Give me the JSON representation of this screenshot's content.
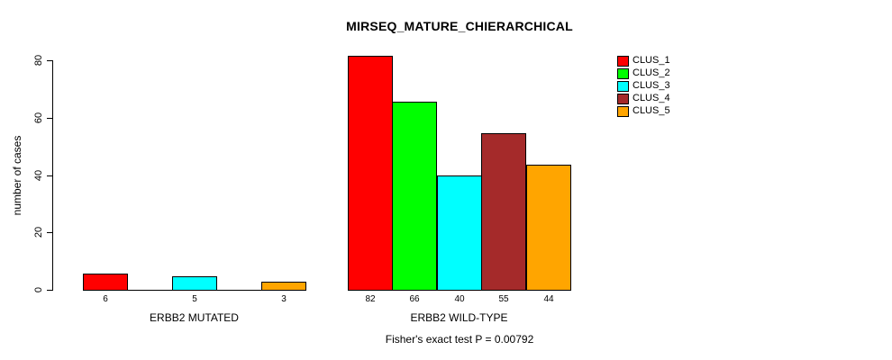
{
  "title": "MIRSEQ_MATURE_CHIERARCHICAL",
  "footer": "Fisher's exact test P = 0.00792",
  "y_axis": {
    "label": "number of cases",
    "ticks": [
      0,
      20,
      40,
      60,
      80
    ],
    "max": 80
  },
  "legend": {
    "items": [
      {
        "label": "CLUS_1",
        "color": "#FF0000"
      },
      {
        "label": "CLUS_2",
        "color": "#00FF00"
      },
      {
        "label": "CLUS_3",
        "color": "#00FFFF"
      },
      {
        "label": "CLUS_4",
        "color": "#A52A2A"
      },
      {
        "label": "CLUS_5",
        "color": "#FFA500"
      }
    ]
  },
  "groups": [
    {
      "label": "ERBB2 MUTATED",
      "bars": [
        {
          "cluster": "CLUS_1",
          "value": 6,
          "label": "6",
          "color": "#FF0000"
        },
        {
          "cluster": "CLUS_2",
          "value": 0,
          "label": "",
          "color": "#00FF00"
        },
        {
          "cluster": "CLUS_3",
          "value": 5,
          "label": "5",
          "color": "#00FFFF"
        },
        {
          "cluster": "CLUS_4",
          "value": 0,
          "label": "",
          "color": "#A52A2A"
        },
        {
          "cluster": "CLUS_5",
          "value": 3,
          "label": "3",
          "color": "#FFA500"
        }
      ]
    },
    {
      "label": "ERBB2 WILD-TYPE",
      "bars": [
        {
          "cluster": "CLUS_1",
          "value": 82,
          "label": "82",
          "color": "#FF0000"
        },
        {
          "cluster": "CLUS_2",
          "value": 66,
          "label": "66",
          "color": "#00FF00"
        },
        {
          "cluster": "CLUS_3",
          "value": 40,
          "label": "40",
          "color": "#00FFFF"
        },
        {
          "cluster": "CLUS_4",
          "value": 55,
          "label": "55",
          "color": "#A52A2A"
        },
        {
          "cluster": "CLUS_5",
          "value": 44,
          "label": "44",
          "color": "#FFA500"
        }
      ]
    }
  ],
  "chart_data": {
    "type": "bar",
    "title": "MIRSEQ_MATURE_CHIERARCHICAL",
    "categories": [
      "ERBB2 MUTATED",
      "ERBB2 WILD-TYPE"
    ],
    "series": [
      {
        "name": "CLUS_1",
        "color": "#FF0000",
        "values": [
          6,
          82
        ]
      },
      {
        "name": "CLUS_2",
        "color": "#00FF00",
        "values": [
          0,
          66
        ]
      },
      {
        "name": "CLUS_3",
        "color": "#00FFFF",
        "values": [
          5,
          40
        ]
      },
      {
        "name": "CLUS_4",
        "color": "#A52A2A",
        "values": [
          0,
          55
        ]
      },
      {
        "name": "CLUS_5",
        "color": "#FFA500",
        "values": [
          3,
          44
        ]
      }
    ],
    "bar_value_labels": [
      [
        "6",
        "",
        "5",
        "",
        "3"
      ],
      [
        "82",
        "66",
        "40",
        "55",
        "44"
      ]
    ],
    "xlabel": "",
    "ylabel": "number of cases",
    "ylim": [
      0,
      80
    ],
    "grid": false,
    "legend_position": "top-right",
    "annotation": "Fisher's exact test P = 0.00792"
  }
}
